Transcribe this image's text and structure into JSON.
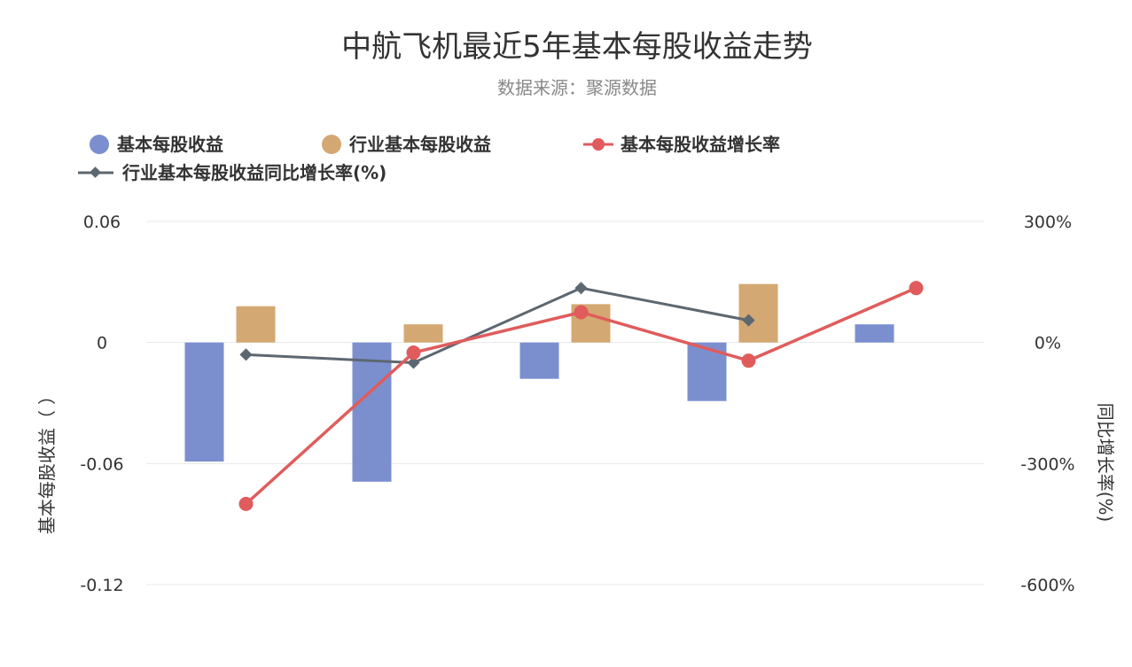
{
  "chart_data": {
    "type": "bar",
    "title": "中航飞机最近5年基本每股收益走势",
    "subtitle": "数据来源：聚源数据",
    "categories": [
      "",
      "",
      "",
      "",
      ""
    ],
    "series": [
      {
        "name": "基本每股收益",
        "kind": "bar",
        "axis": "left",
        "color": "#7b8fcf",
        "values": [
          -0.059,
          -0.069,
          -0.018,
          -0.029,
          0.009
        ]
      },
      {
        "name": "行业基本每股收益",
        "kind": "bar",
        "axis": "left",
        "color": "#d4a872",
        "values": [
          0.018,
          0.009,
          0.019,
          0.029,
          null
        ]
      },
      {
        "name": "基本每股收益增长率",
        "kind": "line",
        "axis": "right",
        "color": "#e05c5c",
        "values": [
          -400,
          -25,
          75,
          -45,
          135
        ]
      },
      {
        "name": "行业基本每股收益同比增长率(%)",
        "kind": "line",
        "axis": "right",
        "color": "#5d6770",
        "values": [
          -30,
          -50,
          135,
          55,
          null
        ]
      }
    ],
    "left_axis": {
      "label": "基本每股收益（ ）",
      "min": -0.12,
      "max": 0.06,
      "ticks": [
        0.06,
        0,
        -0.06,
        -0.12
      ],
      "tick_labels": [
        "0.06",
        "0",
        "-0.06",
        "-0.12"
      ]
    },
    "right_axis": {
      "label": "同比增长率(%)",
      "min": -600,
      "max": 300,
      "ticks": [
        300,
        0,
        -300,
        -600
      ],
      "tick_labels": [
        "300%",
        "0%",
        "-300%",
        "-600%"
      ]
    },
    "grid": true,
    "legend_position": "top-left"
  }
}
